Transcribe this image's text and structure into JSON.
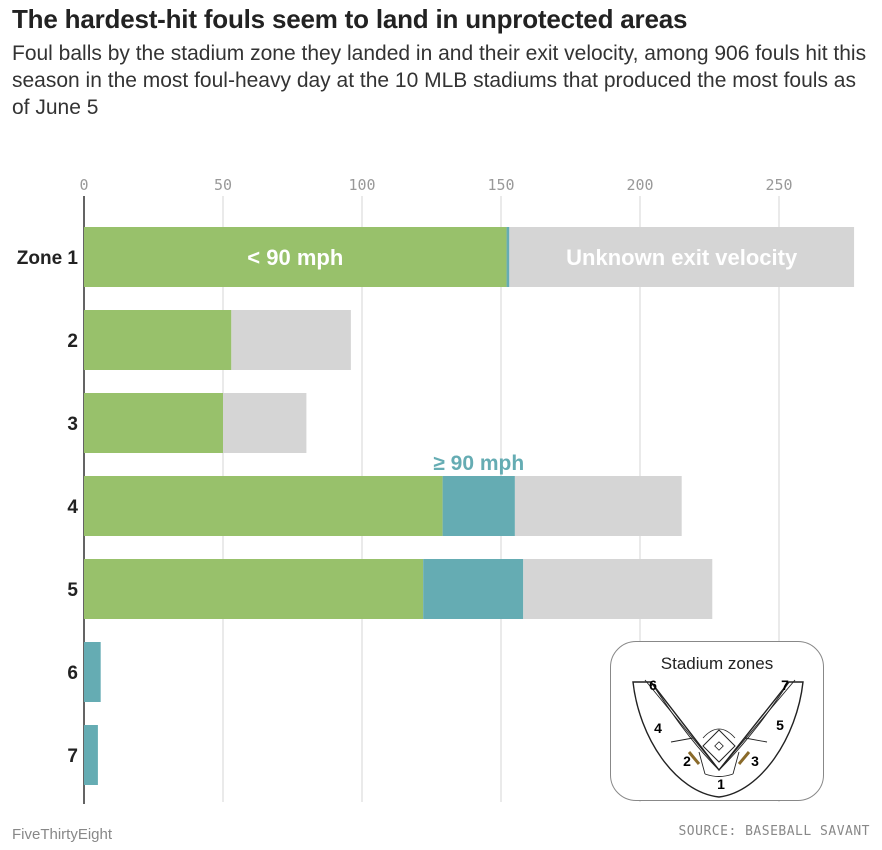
{
  "header": {
    "title": "The hardest-hit fouls seem to land in unprotected areas",
    "subtitle": "Foul balls by the stadium zone they landed in and their exit velocity, among 906 fouls hit this season in the most foul-heavy day at the 10 MLB stadiums that produced the most fouls as of June 5"
  },
  "footer": {
    "brand": "FiveThirtyEight",
    "source": "SOURCE: BASEBALL SAVANT"
  },
  "inset": {
    "title": "Stadium zones",
    "zone_labels": [
      "1",
      "2",
      "3",
      "4",
      "5",
      "6",
      "7"
    ]
  },
  "chart_data": {
    "type": "bar",
    "orientation": "horizontal",
    "stacked": true,
    "categories": [
      "Zone 1",
      "2",
      "3",
      "4",
      "5",
      "6",
      "7"
    ],
    "series": [
      {
        "name": "< 90 mph",
        "color": "#98c16b",
        "values": [
          152,
          53,
          50,
          129,
          122,
          0,
          0
        ]
      },
      {
        "name": "≥ 90 mph",
        "color": "#65acb3",
        "values": [
          1,
          0,
          0,
          26,
          36,
          6,
          5
        ]
      },
      {
        "name": "Unknown exit velocity",
        "color": "#d5d5d5",
        "values": [
          124,
          43,
          30,
          60,
          68,
          0,
          0
        ]
      }
    ],
    "xticks": [
      0,
      50,
      100,
      150,
      200,
      250
    ],
    "xlim": [
      0,
      280
    ],
    "grid": true
  }
}
